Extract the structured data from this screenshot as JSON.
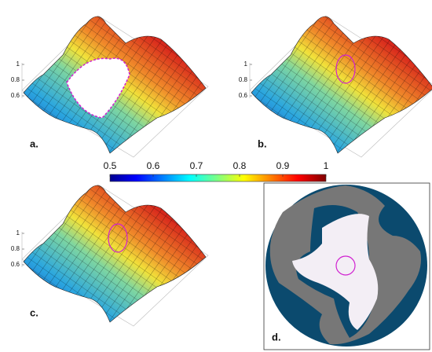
{
  "panels": [
    {
      "label": "a.",
      "zticks": [
        1,
        0.8,
        0.6
      ]
    },
    {
      "label": "b.",
      "zticks": [
        1,
        0.8,
        0.6
      ]
    },
    {
      "label": "c.",
      "zticks": [
        1,
        0.8,
        0.6
      ]
    },
    {
      "label": "d."
    }
  ],
  "colorbar": {
    "lim": [
      0.5,
      1
    ],
    "ticks": [
      0.5,
      0.6,
      0.7,
      0.8,
      0.9,
      1
    ]
  }
}
